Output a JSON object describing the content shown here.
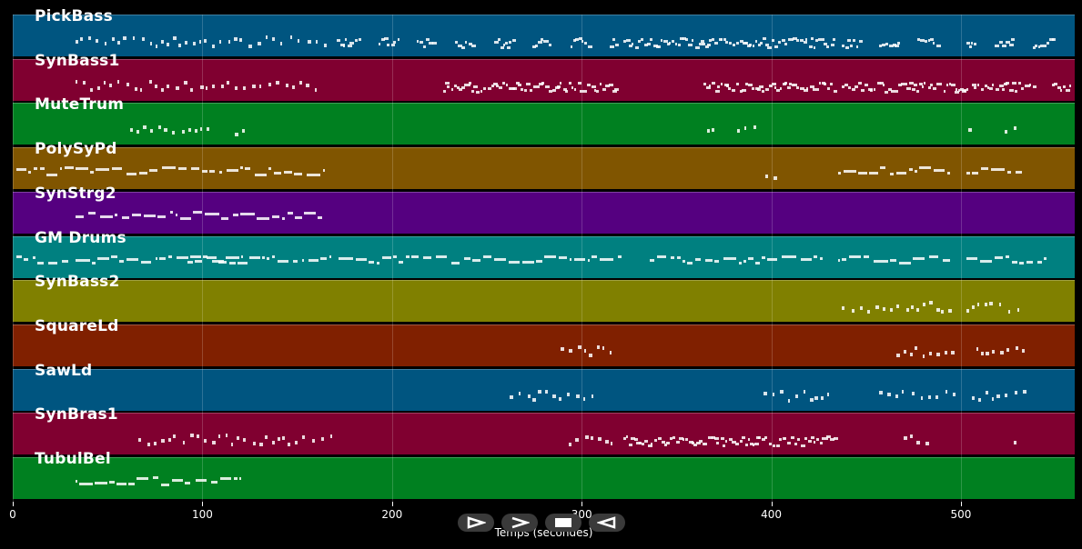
{
  "chart_data": {
    "type": "piano-roll",
    "x_range": [
      0,
      560
    ],
    "x_ticks": [
      0,
      100,
      200,
      300,
      400,
      500
    ],
    "xlabel": "Temps (secondes)",
    "tracks": [
      {
        "name": "PickBass",
        "color": "#005580",
        "segments": [
          [
            33,
            165,
            "sparse"
          ],
          [
            171,
            183,
            "dense"
          ],
          [
            193,
            203,
            "dense"
          ],
          [
            213,
            223,
            "dense"
          ],
          [
            233,
            243,
            "dense"
          ],
          [
            254,
            264,
            "dense"
          ],
          [
            274,
            284,
            "dense"
          ],
          [
            294,
            304,
            "dense"
          ],
          [
            315,
            318,
            "dense"
          ],
          [
            322,
            433,
            "dense"
          ],
          [
            437,
            447,
            "dense"
          ],
          [
            457,
            467,
            "dense"
          ],
          [
            477,
            487,
            "dense"
          ],
          [
            503,
            507,
            "dense"
          ],
          [
            518,
            528,
            "dense"
          ],
          [
            538,
            548,
            "dense"
          ]
        ]
      },
      {
        "name": "SynBass1",
        "color": "#800030",
        "segments": [
          [
            33,
            163,
            "sparse"
          ],
          [
            227,
            318,
            "dense"
          ],
          [
            364,
            433,
            "dense"
          ],
          [
            437,
            497,
            "dense"
          ],
          [
            497,
            503,
            "dense"
          ],
          [
            506,
            538,
            "dense"
          ],
          [
            548,
            557,
            "dense"
          ]
        ]
      },
      {
        "name": "MuteTrum",
        "color": "#008020",
        "segments": [
          [
            62,
            103,
            "sparse"
          ],
          [
            117,
            122,
            "sparse"
          ],
          [
            366,
            371,
            "sparse"
          ],
          [
            382,
            391,
            "sparse"
          ],
          [
            504,
            506,
            "sparse"
          ],
          [
            523,
            531,
            "sparse"
          ]
        ]
      },
      {
        "name": "PolySyPd",
        "color": "#805500",
        "segments": [
          [
            2,
            165,
            "long"
          ],
          [
            397,
            402,
            "sparse"
          ],
          [
            435,
            495,
            "long"
          ],
          [
            503,
            533,
            "long"
          ]
        ]
      },
      {
        "name": "SynStrg2",
        "color": "#550080",
        "segments": [
          [
            33,
            164,
            "long"
          ]
        ]
      },
      {
        "name": "GM Drums",
        "color": "#008080",
        "segments": [
          [
            2,
            30,
            "long"
          ],
          [
            33,
            122,
            "long"
          ],
          [
            92,
            168,
            "long"
          ],
          [
            172,
            322,
            "long"
          ],
          [
            336,
            428,
            "long"
          ],
          [
            435,
            495,
            "long"
          ],
          [
            503,
            546,
            "long"
          ]
        ]
      },
      {
        "name": "SynBass2",
        "color": "#808000",
        "segments": [
          [
            437,
            497,
            "sparse"
          ],
          [
            503,
            533,
            "sparse"
          ]
        ]
      },
      {
        "name": "SquareLd",
        "color": "#802000",
        "segments": [
          [
            289,
            318,
            "sparse"
          ],
          [
            466,
            497,
            "sparse"
          ],
          [
            508,
            533,
            "sparse"
          ]
        ]
      },
      {
        "name": "SawLd",
        "color": "#005580",
        "segments": [
          [
            262,
            308,
            "sparse"
          ],
          [
            396,
            433,
            "sparse"
          ],
          [
            457,
            497,
            "sparse"
          ],
          [
            506,
            533,
            "sparse"
          ]
        ]
      },
      {
        "name": "SynBras1",
        "color": "#800030",
        "segments": [
          [
            66,
            168,
            "sparse"
          ],
          [
            293,
            318,
            "sparse"
          ],
          [
            322,
            433,
            "dense"
          ],
          [
            470,
            485,
            "sparse"
          ],
          [
            528,
            530,
            "sparse"
          ]
        ]
      },
      {
        "name": "TubulBel",
        "color": "#008020",
        "segments": [
          [
            33,
            121,
            "long"
          ]
        ]
      }
    ]
  },
  "controls": [
    {
      "name": "play-button",
      "icon": "play-icon"
    },
    {
      "name": "forward-button",
      "icon": "forward-chevron-icon"
    },
    {
      "name": "stop-button",
      "icon": "stop-icon"
    },
    {
      "name": "back-button",
      "icon": "back-icon"
    }
  ]
}
